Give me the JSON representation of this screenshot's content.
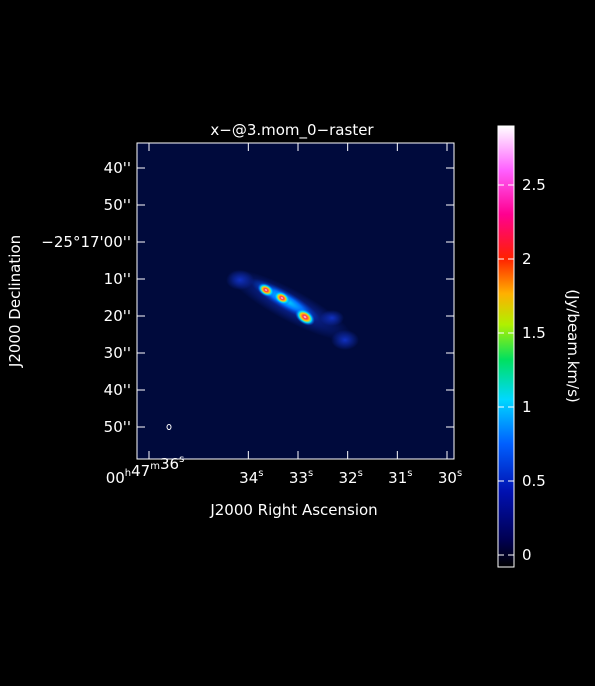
{
  "figure": {
    "title": "x−@3.mom_0−raster",
    "xlabel": "J2000 Right Ascension",
    "ylabel": "J2000 Declination",
    "colorbar_label": "(Jy/beam.km/s)"
  },
  "axes": {
    "x_ticks": [
      {
        "label": "00h47m36s",
        "ra_s": 36
      },
      {
        "label": "34s",
        "ra_s": 34
      },
      {
        "label": "33s",
        "ra_s": 33
      },
      {
        "label": "32s",
        "ra_s": 32
      },
      {
        "label": "31s",
        "ra_s": 31
      },
      {
        "label": "30s",
        "ra_s": 30
      }
    ],
    "y_ticks": [
      {
        "label": "40''",
        "dec_arcsec": 40
      },
      {
        "label": "50''",
        "dec_arcsec": 50
      },
      {
        "label": "−25°17'00''",
        "dec_arcsec": 60
      },
      {
        "label": "10''",
        "dec_arcsec": 70
      },
      {
        "label": "20''",
        "dec_arcsec": 80
      },
      {
        "label": "30''",
        "dec_arcsec": 90
      },
      {
        "label": "40''",
        "dec_arcsec": 100
      },
      {
        "label": "50''",
        "dec_arcsec": 110
      }
    ]
  },
  "colorbar": {
    "ticks": [
      "0",
      "0.5",
      "1",
      "1.5",
      "2",
      "2.5"
    ],
    "min": 0,
    "max": 2.9
  },
  "colors": {
    "background": "#000000",
    "image_background": "#000a3c",
    "frame": "#ffffff"
  }
}
